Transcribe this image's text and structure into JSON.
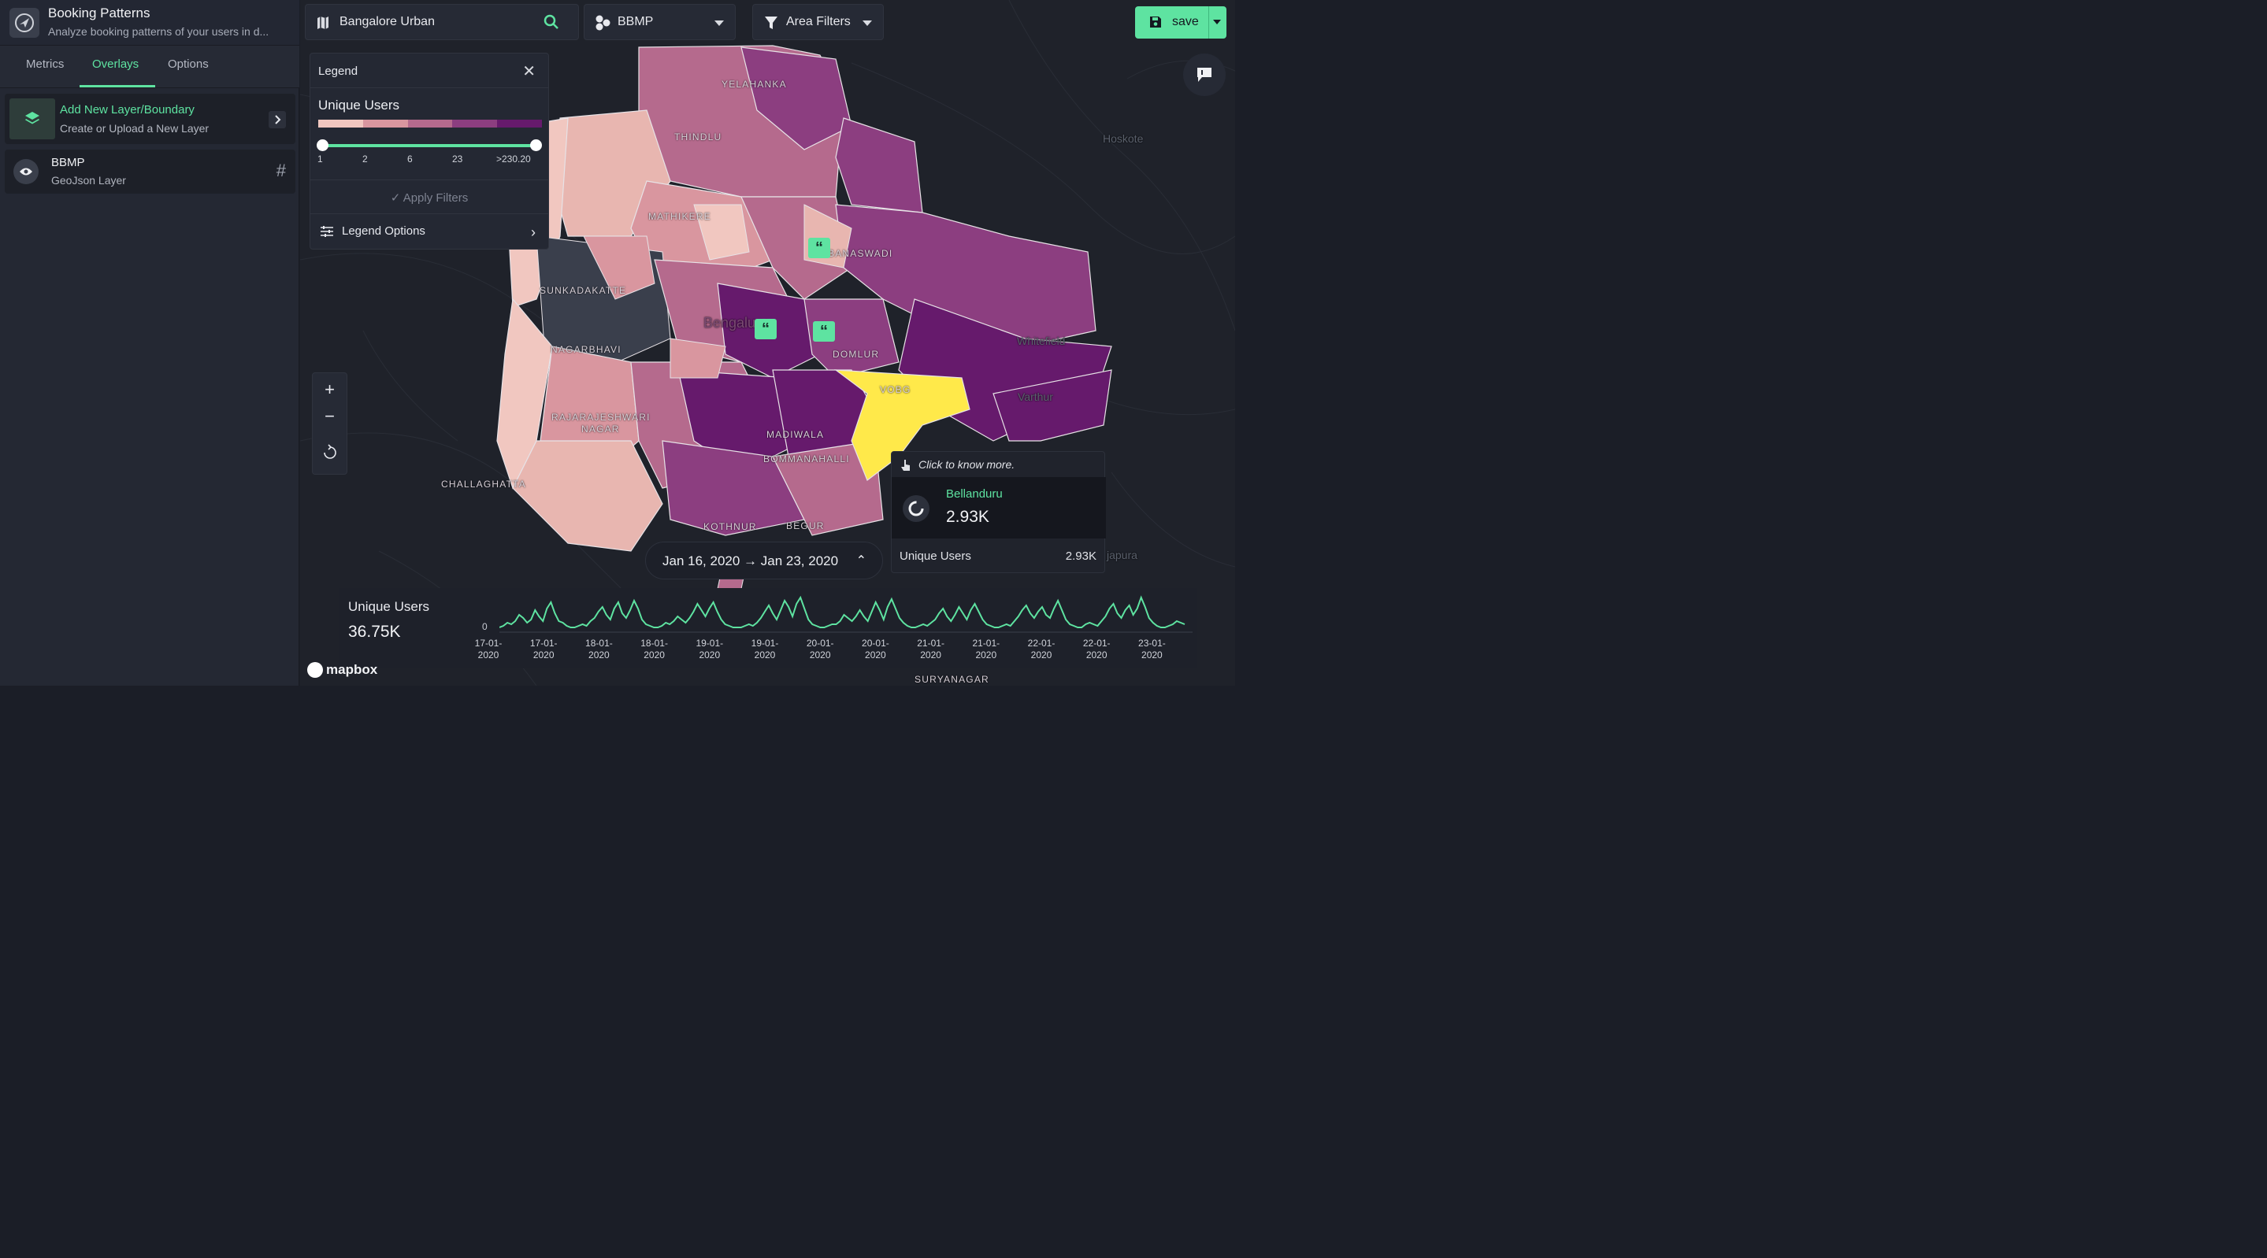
{
  "app": {
    "title": "Booking Patterns",
    "subtitle": "Analyze booking patterns of your users in d..."
  },
  "tabs": [
    {
      "label": "Metrics",
      "active": false
    },
    {
      "label": "Overlays",
      "active": true
    },
    {
      "label": "Options",
      "active": false
    }
  ],
  "sidebar": {
    "add_layer": {
      "title": "Add New Layer/Boundary",
      "subtitle": "Create or Upload a New Layer"
    },
    "layers": [
      {
        "name": "BBMP",
        "type": "GeoJson Layer"
      }
    ]
  },
  "toolbar": {
    "location": "Bangalore Urban",
    "boundary": "BBMP",
    "area_filters": "Area Filters",
    "save_label": "save"
  },
  "legend": {
    "title": "Legend",
    "metric": "Unique Users",
    "colors": [
      "#f1c7c0",
      "#d9969f",
      "#b56a8d",
      "#8c3e80",
      "#661a6c"
    ],
    "ticks": [
      "1",
      "2",
      "6",
      "23",
      ">230.20"
    ],
    "apply_label": "Apply Filters",
    "options_label": "Legend Options"
  },
  "map_labels": [
    "YELAHANKA",
    "THINDLU",
    "MATHIKERE",
    "BANASWADI",
    "SUNKADAKATTE",
    "NAGARBHAVI",
    "DOMLUR",
    "VOBG",
    "RAJARAJESHWARI",
    "NAGAR",
    "MADIWALA",
    "BOMMANAHALLI",
    "CHALLAGHATTA",
    "KOTHNUR",
    "BEGUR",
    "SURYANAGAR"
  ],
  "map_places": [
    "Hoskote",
    "Whitefield",
    "Varthur",
    "Bengaluru",
    "japura"
  ],
  "date_range": {
    "label": "Jan 16, 2020 → Jan 23, 2020"
  },
  "tooltip": {
    "hint": "Click to know more.",
    "area_name": "Bellanduru",
    "area_value": "2.93K",
    "metric_label": "Unique Users",
    "metric_value": "2.93K"
  },
  "timeseries": {
    "title": "Unique Users",
    "total": "36.75K",
    "y_zero": "0",
    "ticks": [
      [
        "17-01-",
        "2020"
      ],
      [
        "17-01-",
        "2020"
      ],
      [
        "18-01-",
        "2020"
      ],
      [
        "18-01-",
        "2020"
      ],
      [
        "19-01-",
        "2020"
      ],
      [
        "19-01-",
        "2020"
      ],
      [
        "20-01-",
        "2020"
      ],
      [
        "20-01-",
        "2020"
      ],
      [
        "21-01-",
        "2020"
      ],
      [
        "21-01-",
        "2020"
      ],
      [
        "22-01-",
        "2020"
      ],
      [
        "22-01-",
        "2020"
      ],
      [
        "23-01-",
        "2020"
      ]
    ],
    "line_color": "#5ee3a1",
    "series": [
      2,
      3,
      5,
      4,
      6,
      10,
      8,
      5,
      7,
      13,
      9,
      6,
      14,
      18,
      11,
      6,
      5,
      3,
      2,
      2,
      3,
      4,
      3,
      6,
      8,
      12,
      15,
      10,
      7,
      14,
      18,
      11,
      8,
      13,
      19,
      14,
      7,
      4,
      3,
      2,
      2,
      3,
      5,
      4,
      6,
      9,
      7,
      5,
      8,
      12,
      17,
      13,
      9,
      14,
      18,
      12,
      7,
      4,
      3,
      2,
      2,
      2,
      3,
      4,
      3,
      5,
      8,
      12,
      16,
      11,
      7,
      13,
      19,
      15,
      9,
      17,
      21,
      14,
      7,
      4,
      3,
      2,
      2,
      3,
      4,
      4,
      6,
      10,
      8,
      6,
      9,
      13,
      9,
      6,
      12,
      18,
      13,
      7,
      15,
      20,
      14,
      8,
      5,
      3,
      2,
      2,
      3,
      4,
      3,
      5,
      7,
      11,
      14,
      9,
      6,
      10,
      15,
      11,
      7,
      13,
      17,
      12,
      7,
      4,
      3,
      2,
      2,
      3,
      4,
      3,
      6,
      9,
      13,
      16,
      11,
      8,
      12,
      15,
      10,
      8,
      14,
      19,
      13,
      7,
      4,
      3,
      2,
      2,
      4,
      5,
      4,
      3,
      6,
      9,
      14,
      17,
      11,
      8,
      13,
      16,
      10,
      14,
      21,
      15,
      8,
      5,
      3,
      2,
      2,
      3,
      4,
      6,
      5,
      4
    ]
  },
  "attribution": "mapbox"
}
